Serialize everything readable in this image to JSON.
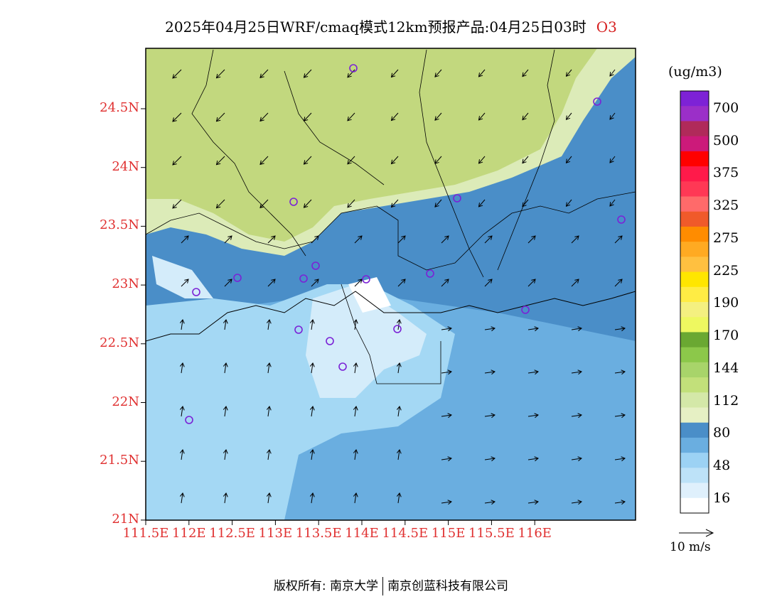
{
  "title": {
    "main": "2025年04月25日WRF/cmaq模式12km预报产品:04月25日03时",
    "pollutant": "O3"
  },
  "axes": {
    "lat_labels": [
      "24.5N",
      "24N",
      "23.5N",
      "23N",
      "22.5N",
      "22N",
      "21.5N",
      "21N"
    ],
    "lon_labels": [
      "111.5E",
      "112E",
      "112.5E",
      "113E",
      "113.5E",
      "114E",
      "114.5E",
      "115E",
      "115.5E",
      "116E"
    ]
  },
  "colorbar": {
    "unit": "(ug/m3)",
    "labels": [
      "700",
      "500",
      "375",
      "325",
      "275",
      "225",
      "190",
      "170",
      "144",
      "112",
      "80",
      "48",
      "16"
    ],
    "colors": [
      "#7d22d6",
      "#9b2fc8",
      "#b02a5a",
      "#cc1a7a",
      "#ff0000",
      "#ff1a4a",
      "#ff3855",
      "#ff6a6a",
      "#f05a2a",
      "#ff8c00",
      "#ffaa22",
      "#ffc040",
      "#ffe600",
      "#ffec44",
      "#f4f080",
      "#eef860",
      "#6aa832",
      "#8cc84a",
      "#a8d46a",
      "#c2e07a",
      "#d4e8a8",
      "#e6f0c4",
      "#4a8ec8",
      "#6aaee0",
      "#9cd2f4",
      "#bde2f8",
      "#dff0fc",
      "#ffffff"
    ]
  },
  "vector_legend": {
    "label": "10 m/s"
  },
  "footer": {
    "copyright": "版权所有: 南京大学",
    "company": "南京创蓝科技有限公司"
  },
  "map_colors": {
    "land_green": "#c2d87e",
    "light_green": "#dcebb8",
    "dark_blue": "#4a8ec8",
    "mid_blue": "#6aaee0",
    "light_blue": "#a4d8f4",
    "pale_blue": "#d4ecfa",
    "white": "#ffffff",
    "station": "#7b22d6"
  }
}
